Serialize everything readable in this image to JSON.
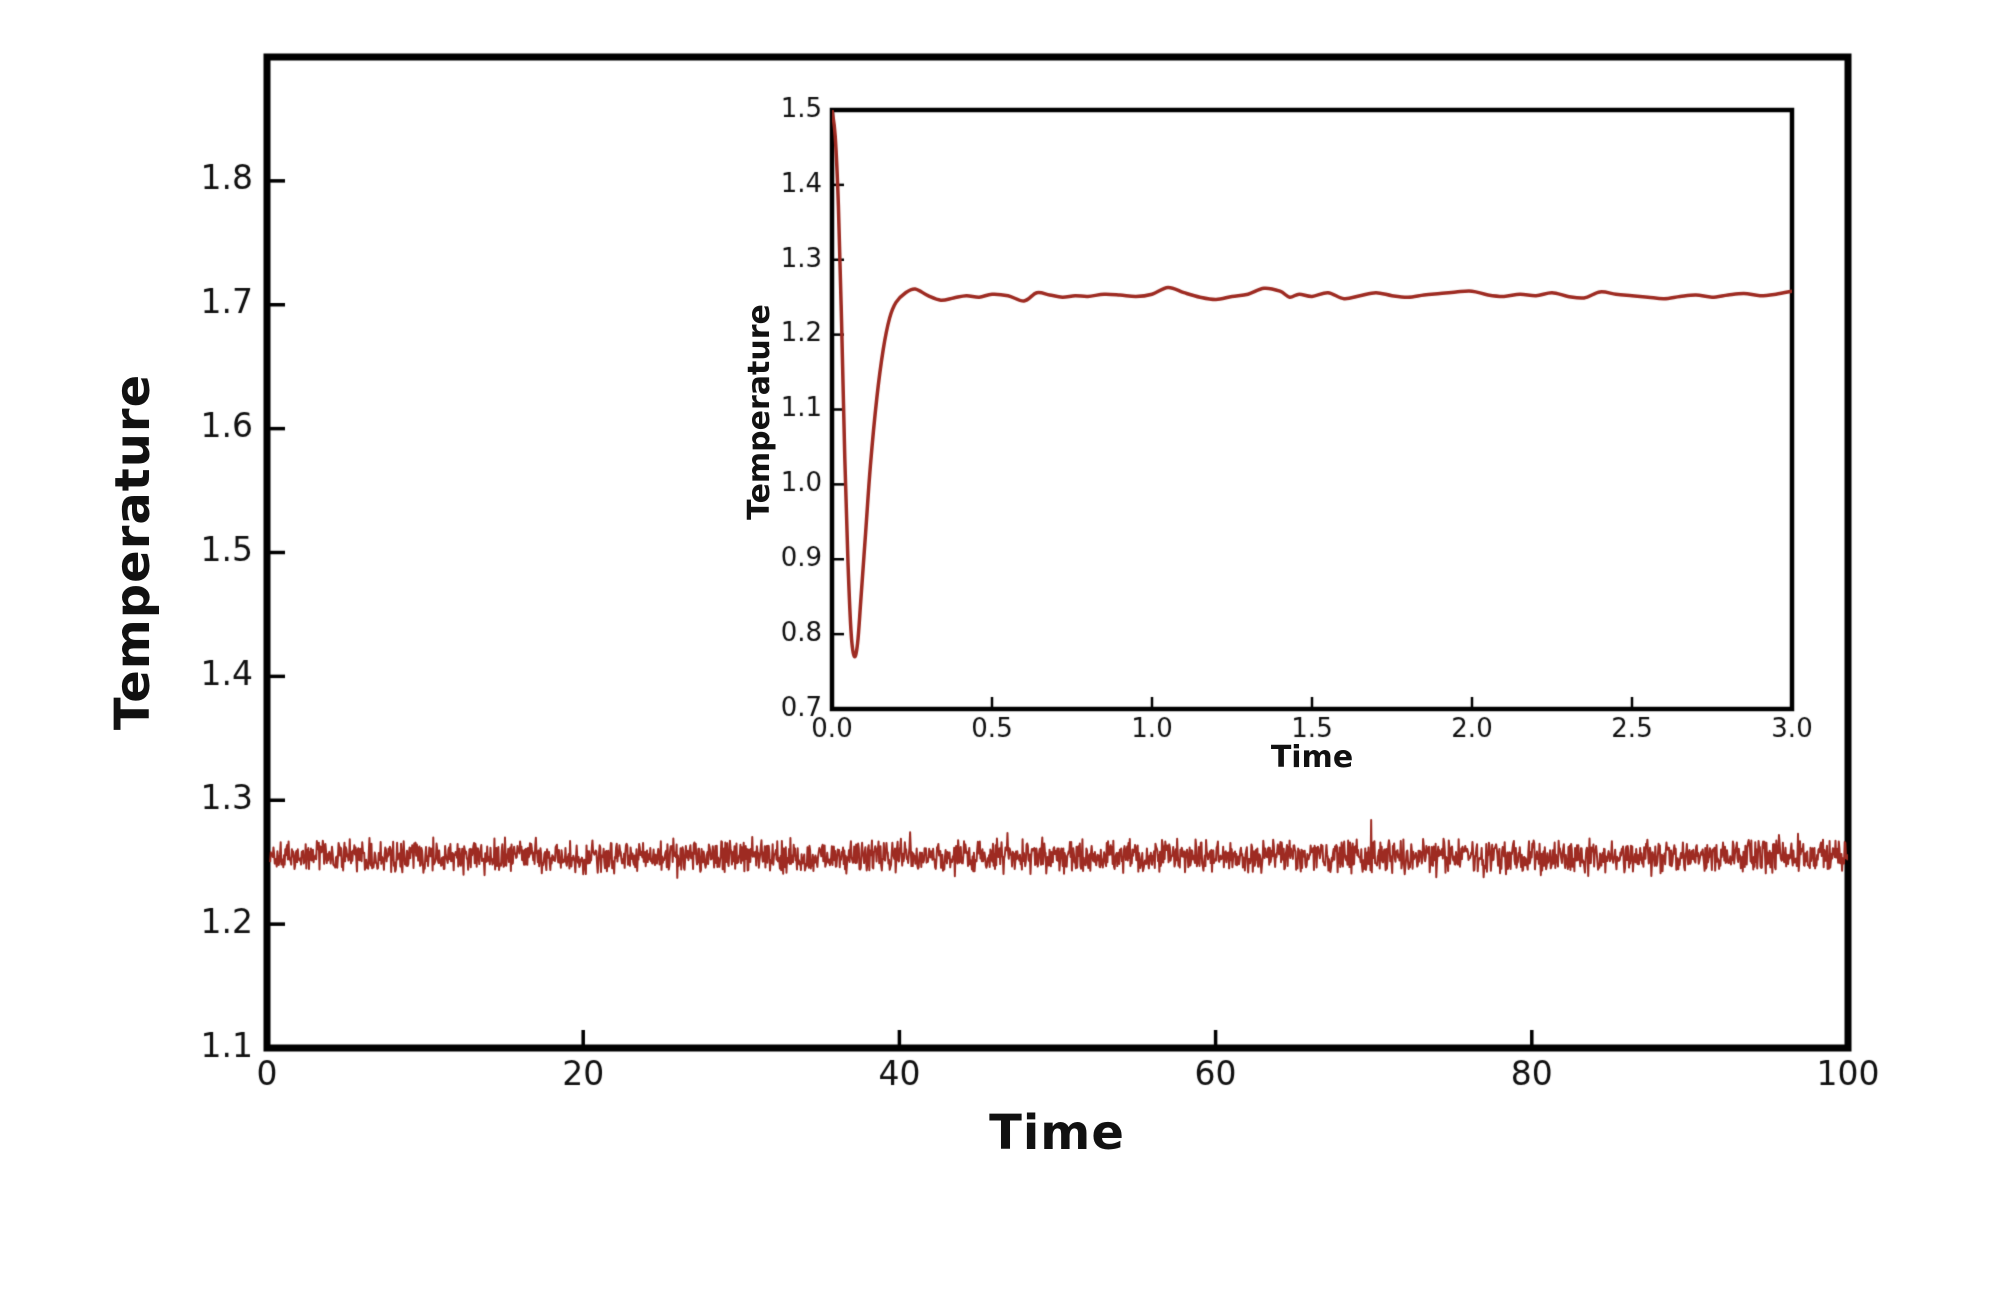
{
  "page": {
    "background": "#ffffff",
    "frame_color": "#000000",
    "text_color": "#111111"
  },
  "chart_data": [
    {
      "id": "main",
      "type": "line",
      "title": "",
      "xlabel": "Time",
      "ylabel": "Temperature",
      "xlim": [
        0,
        100
      ],
      "ylim": [
        1.1,
        1.9
      ],
      "grid": false,
      "legend": "none",
      "xticks": {
        "values": [
          0,
          20,
          40,
          60,
          80,
          100
        ],
        "labels": [
          "0",
          "20",
          "40",
          "60",
          "80",
          "100"
        ]
      },
      "yticks": {
        "values": [
          1.1,
          1.2,
          1.3,
          1.4,
          1.5,
          1.6,
          1.7,
          1.8
        ],
        "labels": [
          "1.1",
          "1.2",
          "1.3",
          "1.4",
          "1.5",
          "1.6",
          "1.7",
          "1.8"
        ]
      },
      "line_color": "#9E2B22",
      "line_width": 2,
      "series": [
        {
          "name": "temperature",
          "description": "stationary noisy temperature signal fluctuating about its mean",
          "mean": 1.255,
          "noise_band": [
            1.24,
            1.27
          ],
          "max_excursion": 0.025,
          "x_start": 0.2,
          "x_end": 100,
          "n_points": 2400,
          "seed": 1337
        }
      ]
    },
    {
      "id": "inset",
      "type": "line",
      "title": "",
      "xlabel": "Time",
      "ylabel": "Temperature",
      "xlim": [
        0.0,
        3.0
      ],
      "ylim": [
        0.7,
        1.5
      ],
      "grid": false,
      "legend": "none",
      "xticks": {
        "values": [
          0.0,
          0.5,
          1.0,
          1.5,
          2.0,
          2.5,
          3.0
        ],
        "labels": [
          "0.0",
          "0.5",
          "1.0",
          "1.5",
          "2.0",
          "2.5",
          "3.0"
        ]
      },
      "yticks": {
        "values": [
          0.7,
          0.8,
          0.9,
          1.0,
          1.1,
          1.2,
          1.3,
          1.4,
          1.5
        ],
        "labels": [
          "0.7",
          "0.8",
          "0.9",
          "1.0",
          "1.1",
          "1.2",
          "1.3",
          "1.4",
          "1.5"
        ]
      },
      "line_color": "#9E2B22",
      "line_width": 3.5,
      "series": [
        {
          "name": "temperature",
          "description": "initial transient: start 1.5, undershoot to 0.77 near t=0.07, settle around 1.25",
          "points": [
            [
              0.0,
              1.5
            ],
            [
              0.01,
              1.465
            ],
            [
              0.02,
              1.372
            ],
            [
              0.03,
              1.215
            ],
            [
              0.04,
              1.035
            ],
            [
              0.05,
              0.895
            ],
            [
              0.06,
              0.8
            ],
            [
              0.07,
              0.77
            ],
            [
              0.08,
              0.788
            ],
            [
              0.09,
              0.845
            ],
            [
              0.105,
              0.935
            ],
            [
              0.12,
              1.025
            ],
            [
              0.14,
              1.115
            ],
            [
              0.16,
              1.18
            ],
            [
              0.18,
              1.222
            ],
            [
              0.2,
              1.243
            ],
            [
              0.23,
              1.256
            ],
            [
              0.26,
              1.261
            ],
            [
              0.3,
              1.252
            ],
            [
              0.34,
              1.246
            ],
            [
              0.38,
              1.249
            ],
            [
              0.42,
              1.252
            ],
            [
              0.46,
              1.25
            ],
            [
              0.5,
              1.254
            ],
            [
              0.55,
              1.252
            ],
            [
              0.6,
              1.245
            ],
            [
              0.64,
              1.256
            ],
            [
              0.68,
              1.253
            ],
            [
              0.72,
              1.25
            ],
            [
              0.76,
              1.252
            ],
            [
              0.8,
              1.251
            ],
            [
              0.85,
              1.254
            ],
            [
              0.9,
              1.253
            ],
            [
              0.95,
              1.251
            ],
            [
              1.0,
              1.254
            ],
            [
              1.05,
              1.263
            ],
            [
              1.1,
              1.256
            ],
            [
              1.15,
              1.25
            ],
            [
              1.2,
              1.247
            ],
            [
              1.25,
              1.251
            ],
            [
              1.3,
              1.254
            ],
            [
              1.35,
              1.262
            ],
            [
              1.4,
              1.258
            ],
            [
              1.43,
              1.25
            ],
            [
              1.46,
              1.254
            ],
            [
              1.5,
              1.251
            ],
            [
              1.55,
              1.256
            ],
            [
              1.6,
              1.248
            ],
            [
              1.65,
              1.252
            ],
            [
              1.7,
              1.256
            ],
            [
              1.75,
              1.252
            ],
            [
              1.8,
              1.25
            ],
            [
              1.85,
              1.253
            ],
            [
              1.9,
              1.255
            ],
            [
              1.95,
              1.257
            ],
            [
              2.0,
              1.258
            ],
            [
              2.05,
              1.253
            ],
            [
              2.1,
              1.251
            ],
            [
              2.15,
              1.254
            ],
            [
              2.2,
              1.252
            ],
            [
              2.25,
              1.256
            ],
            [
              2.3,
              1.251
            ],
            [
              2.35,
              1.249
            ],
            [
              2.4,
              1.257
            ],
            [
              2.45,
              1.254
            ],
            [
              2.5,
              1.252
            ],
            [
              2.55,
              1.25
            ],
            [
              2.6,
              1.248
            ],
            [
              2.65,
              1.251
            ],
            [
              2.7,
              1.253
            ],
            [
              2.75,
              1.25
            ],
            [
              2.8,
              1.253
            ],
            [
              2.85,
              1.255
            ],
            [
              2.9,
              1.252
            ],
            [
              2.95,
              1.254
            ],
            [
              3.0,
              1.258
            ]
          ]
        }
      ]
    }
  ]
}
